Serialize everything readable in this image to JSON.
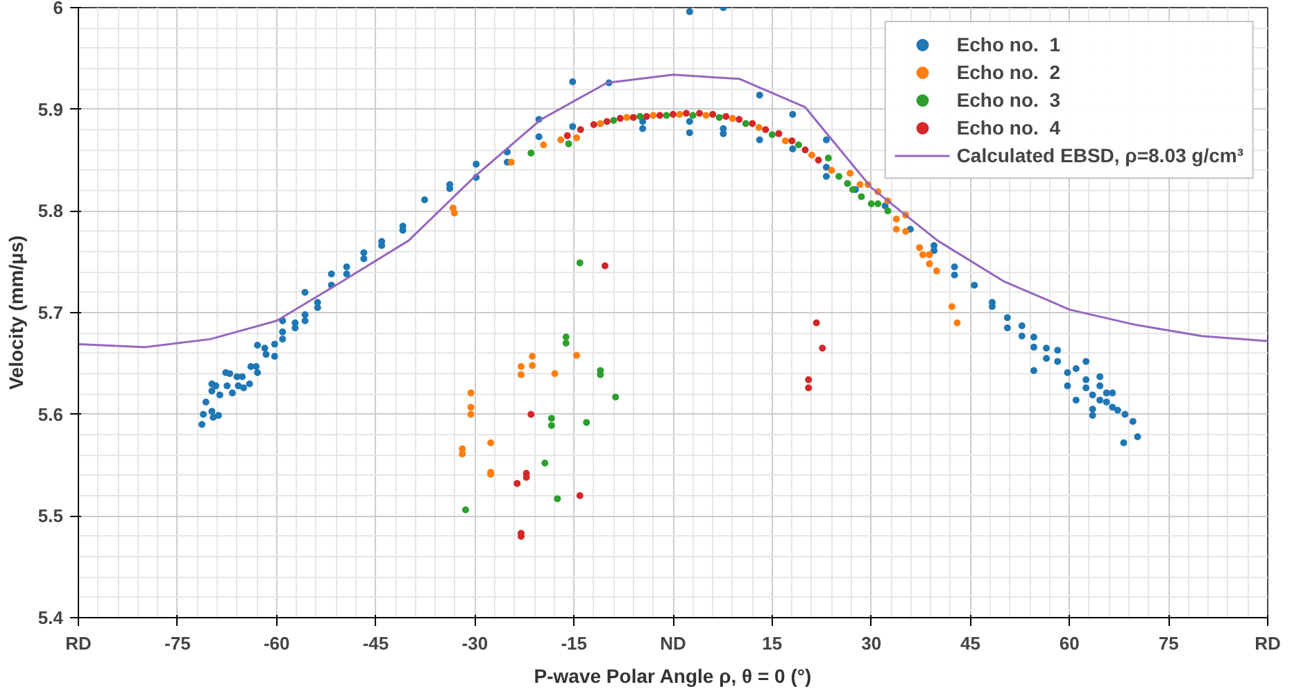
{
  "chart_data": {
    "type": "scatter",
    "xlabel": "P-wave Polar Angle ρ, θ = 0 (°)",
    "ylabel": "Velocity (mm/μs)",
    "xlim": [
      -90,
      90
    ],
    "ylim": [
      5.4,
      6
    ],
    "xticks": [
      {
        "value": -90,
        "label": "RD"
      },
      -75,
      -60,
      -45,
      -30,
      -15,
      {
        "value": 0,
        "label": "ND"
      },
      15,
      30,
      45,
      60,
      75,
      {
        "value": 90,
        "label": "RD"
      }
    ],
    "yticks": [
      5.4,
      5.5,
      5.6,
      5.7,
      5.8,
      5.9,
      6
    ],
    "grid": true,
    "legend": "top right",
    "marker": "circle",
    "series": [
      {
        "name": "Echo no.  1",
        "color": "#1f77b4",
        "x": [
          -71.3,
          -71.1,
          -70.7,
          -69.8,
          -69.6,
          -68.8,
          -69.8,
          -69.8,
          -69.2,
          -68.6,
          -67.7,
          -67.5,
          -67.1,
          -66.7,
          -66.0,
          -65.8,
          -65.2,
          -65.0,
          -64.1,
          -63.9,
          -63.1,
          -62.9,
          -62.9,
          -61.8,
          -61.6,
          -60.3,
          -60.3,
          -59.1,
          -59.1,
          -59.1,
          -57.2,
          -57.2,
          -55.7,
          -55.7,
          -55.7,
          -53.8,
          -53.8,
          -51.7,
          -51.7,
          -49.4,
          -49.4,
          -46.8,
          -46.8,
          -44.1,
          -44.1,
          -40.9,
          -40.9,
          -37.6,
          -33.8,
          -33.8,
          -29.8,
          -29.8,
          -25.1,
          -25.1,
          -20.3,
          -20.3,
          -15.2,
          -15.2,
          -9.7,
          -4.6,
          -4.6,
          2.5,
          2.5,
          2.5,
          7.6,
          7.6,
          7.6,
          13.1,
          13.1,
          18.1,
          18.1,
          23.2,
          23.2,
          23.2,
          27.6,
          32.1,
          35.9,
          39.5,
          39.5,
          42.6,
          42.6,
          45.6,
          48.3,
          48.3,
          50.6,
          50.6,
          52.8,
          52.8,
          54.6,
          54.6,
          54.6,
          56.5,
          56.5,
          58.2,
          58.2,
          59.7,
          59.7,
          61.0,
          61.0,
          62.5,
          62.5,
          62.5,
          63.5,
          63.5,
          63.5,
          64.6,
          64.6,
          64.6,
          65.6,
          65.6,
          66.5,
          66.5,
          67.3,
          68.4,
          69.6,
          68.2,
          70.3
        ],
        "values": [
          5.59,
          5.6,
          5.612,
          5.603,
          5.597,
          5.599,
          5.623,
          5.63,
          5.628,
          5.619,
          5.641,
          5.628,
          5.64,
          5.621,
          5.637,
          5.628,
          5.637,
          5.626,
          5.63,
          5.647,
          5.647,
          5.641,
          5.668,
          5.665,
          5.659,
          5.669,
          5.657,
          5.692,
          5.681,
          5.674,
          5.69,
          5.685,
          5.72,
          5.698,
          5.692,
          5.71,
          5.705,
          5.738,
          5.727,
          5.745,
          5.738,
          5.759,
          5.753,
          5.77,
          5.766,
          5.785,
          5.781,
          5.811,
          5.826,
          5.822,
          5.846,
          5.833,
          5.858,
          5.848,
          5.89,
          5.873,
          5.927,
          5.883,
          5.926,
          5.888,
          5.881,
          5.996,
          5.888,
          5.877,
          6.0,
          5.881,
          5.876,
          5.914,
          5.87,
          5.895,
          5.861,
          5.87,
          5.843,
          5.834,
          5.821,
          5.805,
          5.782,
          5.766,
          5.761,
          5.745,
          5.737,
          5.727,
          5.71,
          5.706,
          5.695,
          5.685,
          5.687,
          5.677,
          5.676,
          5.666,
          5.643,
          5.665,
          5.655,
          5.663,
          5.652,
          5.641,
          5.628,
          5.645,
          5.614,
          5.652,
          5.634,
          5.626,
          5.619,
          5.605,
          5.599,
          5.637,
          5.628,
          5.614,
          5.621,
          5.612,
          5.621,
          5.607,
          5.604,
          5.6,
          5.593,
          5.572,
          5.578
        ]
      },
      {
        "name": "Echo no.  2",
        "color": "#ff7f0e",
        "x": [
          -33.3,
          -33.1,
          -24.5,
          -19.6,
          -17.0,
          -14.6,
          -11,
          -7,
          -3,
          1,
          5,
          9,
          13,
          17,
          21,
          24,
          26.8,
          28.3,
          29.5,
          31.0,
          32.5,
          33.8,
          33.8,
          35.2,
          35.2,
          37.3,
          37.8,
          38.8,
          38.8,
          39.9,
          42.2,
          43.0,
          -30.6,
          -30.6,
          -30.6,
          -31.9,
          -31.9,
          -27.6,
          -27.6,
          -27.6,
          -23.0,
          -23.0,
          -21.3,
          -21.3,
          -17.9,
          -14.6
        ],
        "values": [
          5.803,
          5.798,
          5.848,
          5.865,
          5.87,
          5.872,
          5.886,
          5.892,
          5.894,
          5.895,
          5.894,
          5.891,
          5.882,
          5.869,
          5.855,
          5.84,
          5.837,
          5.826,
          5.826,
          5.819,
          5.81,
          5.792,
          5.782,
          5.796,
          5.78,
          5.764,
          5.757,
          5.757,
          5.748,
          5.741,
          5.706,
          5.69,
          5.621,
          5.607,
          5.6,
          5.566,
          5.561,
          5.572,
          5.543,
          5.541,
          5.647,
          5.639,
          5.657,
          5.648,
          5.64,
          5.658
        ]
      },
      {
        "name": "Echo no.  3",
        "color": "#2ca02c",
        "x": [
          -21.5,
          -15.8,
          -9,
          -5,
          -1,
          3,
          7,
          11,
          15,
          19,
          23.5,
          25.1,
          26.4,
          27.2,
          28.5,
          30.0,
          31.0,
          32.5,
          -14.1,
          -16.2,
          -16.2,
          -11.0,
          -11.0,
          -8.7,
          -18.4,
          -18.4,
          -13.1,
          -19.4,
          -17.5,
          -31.4
        ],
        "values": [
          5.857,
          5.866,
          5.889,
          5.893,
          5.894,
          5.894,
          5.892,
          5.886,
          5.875,
          5.865,
          5.852,
          5.834,
          5.827,
          5.821,
          5.814,
          5.807,
          5.807,
          5.8,
          5.749,
          5.676,
          5.67,
          5.643,
          5.639,
          5.617,
          5.596,
          5.589,
          5.592,
          5.552,
          5.517,
          5.506
        ]
      },
      {
        "name": "Echo no.  4",
        "color": "#d62728",
        "x": [
          -16,
          -14,
          -12,
          -10,
          -8,
          -6,
          -4,
          -2,
          0,
          2,
          4,
          6,
          8,
          10,
          12,
          14,
          16,
          18,
          20,
          22,
          -10.3,
          -21.5,
          -22.2,
          -22.2,
          -23.6,
          -14.1,
          -23.0,
          -23.0,
          21.7,
          22.6,
          20.5,
          20.5
        ],
        "values": [
          5.874,
          5.88,
          5.885,
          5.888,
          5.891,
          5.892,
          5.893,
          5.894,
          5.895,
          5.896,
          5.896,
          5.895,
          5.893,
          5.89,
          5.886,
          5.88,
          5.876,
          5.869,
          5.86,
          5.85,
          5.746,
          5.6,
          5.542,
          5.538,
          5.532,
          5.52,
          5.483,
          5.48,
          5.69,
          5.665,
          5.634,
          5.626
        ]
      },
      {
        "name": "Calculated EBSD, ρ=8.03 g/cm³",
        "type": "line",
        "marker": "none",
        "line_style": "solid",
        "color": "#9467bd",
        "x": [
          -90,
          -80,
          -70,
          -60,
          -50,
          -40,
          -30,
          -20,
          -10,
          0,
          10,
          20,
          30,
          40,
          50,
          60,
          70,
          80,
          90
        ],
        "values": [
          5.669,
          5.666,
          5.674,
          5.692,
          5.731,
          5.771,
          5.834,
          5.89,
          5.926,
          5.934,
          5.93,
          5.902,
          5.823,
          5.771,
          5.731,
          5.703,
          5.688,
          5.677,
          5.672
        ]
      }
    ]
  }
}
